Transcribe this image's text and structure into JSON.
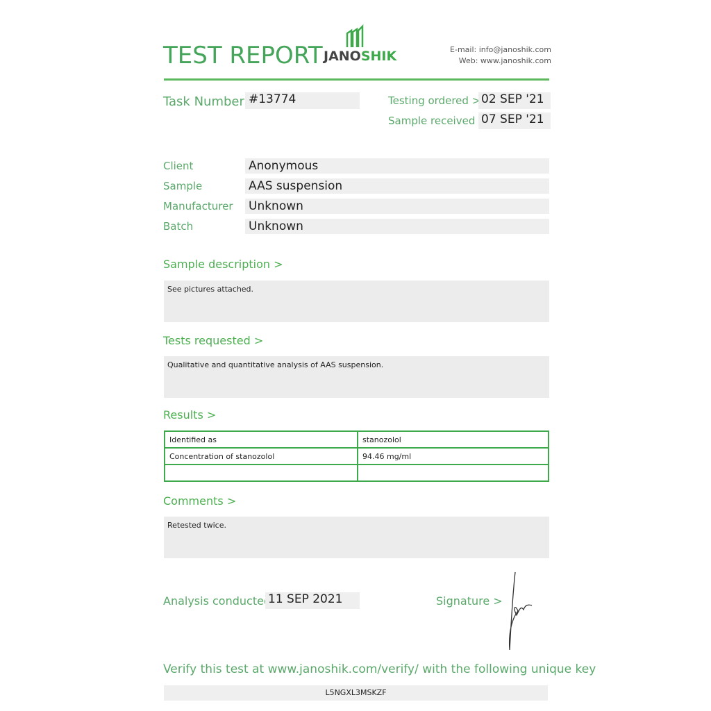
{
  "header": {
    "title": "TEST REPORT",
    "logo_a": "JANO",
    "logo_b": "SHIK",
    "email": "E-mail: info@janoshik.com",
    "web": "Web: www.janoshik.com"
  },
  "task": {
    "label": "Task Number",
    "value": "#13774",
    "ordered_label": "Testing ordered  >",
    "ordered": "02 SEP '21",
    "received_label": "Sample received >",
    "received": "07 SEP '21"
  },
  "info": [
    {
      "label": "Client",
      "value": "Anonymous"
    },
    {
      "label": "Sample",
      "value": "AAS suspension"
    },
    {
      "label": "Manufacturer",
      "value": "Unknown"
    },
    {
      "label": "Batch",
      "value": "Unknown"
    }
  ],
  "sample_description": {
    "label": "Sample description >",
    "text": "See pictures attached."
  },
  "tests_requested": {
    "label": "Tests requested >",
    "text": "Qualitative and quantitative analysis of AAS suspension."
  },
  "results": {
    "label": "Results >",
    "rows": [
      [
        "Identified as",
        "stanozolol"
      ],
      [
        "Concentration of stanozolol",
        "94.46 mg/ml"
      ],
      [
        "",
        ""
      ]
    ]
  },
  "comments": {
    "label": "Comments >",
    "text": "Retested twice."
  },
  "analysis": {
    "label": "Analysis conducted >",
    "date": "11 SEP 2021",
    "signature_label": "Signature >"
  },
  "verify": {
    "text": "Verify this test at www.janoshik.com/verify/ with the following unique key",
    "key": "L5NGXL3MSKZF"
  }
}
